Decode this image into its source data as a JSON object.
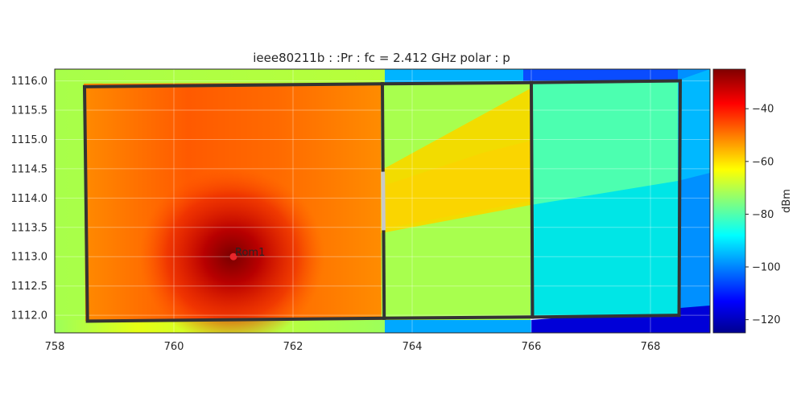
{
  "chart_data": {
    "type": "heatmap",
    "title": "ieee80211b :  :Pr :  fc = 2.412 GHz polar : p",
    "xlim": [
      758,
      769
    ],
    "ylim": [
      1111.7,
      1116.2
    ],
    "x_ticks": [
      758,
      760,
      762,
      764,
      766,
      768
    ],
    "x_tick_labels": [
      "758",
      "760",
      "762",
      "764",
      "766",
      "768"
    ],
    "y_ticks": [
      1112.0,
      1112.5,
      1113.0,
      1113.5,
      1114.0,
      1114.5,
      1115.0,
      1115.5,
      1116.0
    ],
    "y_tick_labels": [
      "1112.0",
      "1112.5",
      "1113.0",
      "1113.5",
      "1114.0",
      "1114.5",
      "1115.0",
      "1115.5",
      "1116.0"
    ],
    "colormap": "jet",
    "colorbar": {
      "label": "dBm",
      "range": [
        -125,
        -25
      ],
      "ticks": [
        -40,
        -60,
        -80,
        -100,
        -120
      ],
      "tick_labels": [
        "−40",
        "−60",
        "−80",
        "−100",
        "−120"
      ]
    },
    "access_point": {
      "label": "Rom1",
      "x": 761.0,
      "y": 1113.0,
      "color": "#e8262b"
    },
    "walls": [
      {
        "x1": 758.5,
        "y1": 1115.9,
        "x2": 763.5,
        "y2": 1115.95
      },
      {
        "x1": 763.5,
        "y1": 1115.95,
        "x2": 766.0,
        "y2": 1115.97
      },
      {
        "x1": 766.0,
        "y1": 1115.97,
        "x2": 768.5,
        "y2": 1116.0
      },
      {
        "x1": 758.5,
        "y1": 1115.9,
        "x2": 758.55,
        "y2": 1111.9
      },
      {
        "x1": 758.55,
        "y1": 1111.9,
        "x2": 763.53,
        "y2": 1111.95
      },
      {
        "x1": 763.53,
        "y1": 1111.95,
        "x2": 766.02,
        "y2": 1111.97
      },
      {
        "x1": 766.02,
        "y1": 1111.97,
        "x2": 768.48,
        "y2": 1112.0
      },
      {
        "x1": 768.5,
        "y1": 1116.0,
        "x2": 768.48,
        "y2": 1112.0
      },
      {
        "x1": 763.5,
        "y1": 1115.95,
        "x2": 763.51,
        "y2": 1114.45
      },
      {
        "x1": 763.52,
        "y1": 1113.45,
        "x2": 763.53,
        "y2": 1111.95
      },
      {
        "x1": 766.0,
        "y1": 1115.97,
        "x2": 766.02,
        "y2": 1111.97
      }
    ],
    "door": {
      "x1": 763.51,
      "y1": 1114.45,
      "x2": 763.52,
      "y2": 1113.45,
      "color": "#c8c8c8"
    },
    "grid": true
  }
}
